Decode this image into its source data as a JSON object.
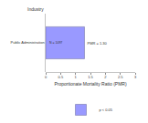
{
  "chart_data": {
    "type": "bar",
    "orientation": "horizontal",
    "ylabel": "Industry",
    "xlabel": "Proportionate Mortality Ratio (PMR)",
    "categories": [
      "Public Administration"
    ],
    "series": [
      {
        "name": "p < 0.05",
        "color": "#9999ff",
        "values": [
          1.3
        ]
      }
    ],
    "value_labels": [
      "PMR = 1.30"
    ],
    "data_labels": true,
    "annotations": [
      "N = 1097"
    ],
    "xlim": [
      0,
      3
    ],
    "xticks": [
      0,
      0.5,
      1,
      1.5,
      2,
      2.5,
      3
    ],
    "grid": false,
    "legend": "bottom"
  }
}
